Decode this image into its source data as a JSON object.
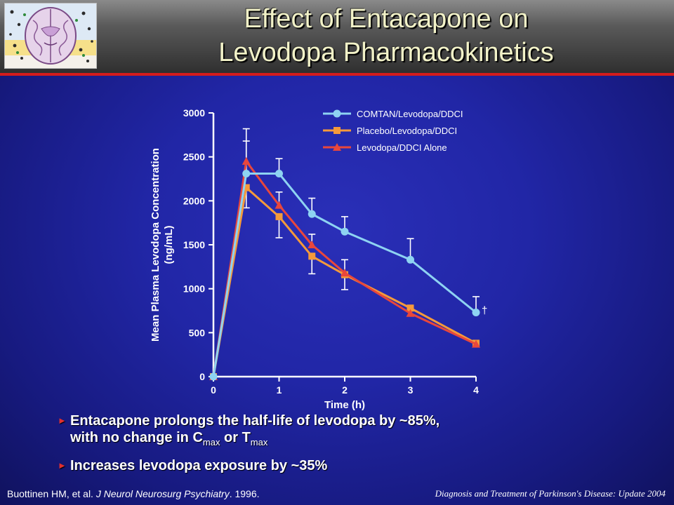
{
  "slide": {
    "title_line1": "Effect of Entacapone on",
    "title_line2": "Levodopa Pharmacokinetics",
    "bullets": {
      "b1_part1": "Entacapone prolongs the half-life of levodopa by ~85%,",
      "b1_part2": "with no change in C",
      "b1_sub1": "max",
      "b1_part3": " or T",
      "b1_sub2": "max",
      "b2": "Increases levodopa exposure by ~35%",
      "marker": "►"
    },
    "citation_authors": "Buottinen HM, et al. ",
    "citation_journal": "J Neurol Neurosurg Psychiatry",
    "citation_year": ". 1996.",
    "footer_note": "Diagnosis and Treatment of Parkinson's Disease: Update 2004"
  },
  "colors": {
    "comtan": "#8ed3f2",
    "placebo": "#f59a3a",
    "alone": "#e8473c",
    "axis": "#ffffff",
    "accent_rule": "#d41c1c"
  },
  "chart_data": {
    "type": "line",
    "xlabel": "Time (h)",
    "ylabel_line1": "Mean Plasma Levodopa Concentration",
    "ylabel_line2": "(ng/mL)",
    "xlim": [
      0,
      4
    ],
    "ylim": [
      0,
      3000
    ],
    "x_ticks": [
      0,
      1,
      2,
      3,
      4
    ],
    "y_ticks": [
      0,
      500,
      1000,
      1500,
      2000,
      2500,
      3000
    ],
    "grid": false,
    "legend_position": "top-right",
    "series": [
      {
        "name": "COMTAN/Levodopa/DDCI",
        "marker": "circle",
        "color_key": "comtan",
        "x": [
          0,
          0.5,
          1,
          1.5,
          2,
          3,
          4
        ],
        "y": [
          0,
          2310,
          2310,
          1850,
          1650,
          1330,
          730
        ],
        "err_upper": [
          0,
          2680,
          2480,
          2030,
          1820,
          1570,
          910
        ]
      },
      {
        "name": "Placebo/Levodopa/DDCI",
        "marker": "square",
        "color_key": "placebo",
        "x": [
          0,
          0.5,
          1,
          1.5,
          2,
          3,
          4
        ],
        "y": [
          0,
          2150,
          1820,
          1370,
          1160,
          780,
          380
        ],
        "err_lower": [
          0,
          1920,
          1580,
          1170,
          990,
          780,
          380
        ]
      },
      {
        "name": "Levodopa/DDCI Alone",
        "marker": "triangle",
        "color_key": "alone",
        "x": [
          0,
          0.5,
          1,
          1.5,
          2,
          3,
          4
        ],
        "y": [
          0,
          2450,
          1950,
          1500,
          1180,
          720,
          370
        ],
        "err_upper": [
          0,
          2820,
          2100,
          1620,
          1330,
          720,
          370
        ]
      }
    ],
    "annotation": "†"
  }
}
